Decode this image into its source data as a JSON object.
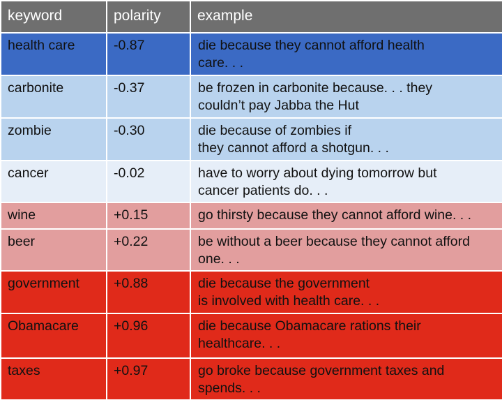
{
  "header": {
    "keyword": "keyword",
    "polarity": "polarity",
    "example": "example"
  },
  "colors": {
    "header": "#6f6f6f",
    "strong_negative": "#3b6ac4",
    "negative": "#b9d3ee",
    "neutral": "#e6eef8",
    "mild_positive": "#e29e9e",
    "strong_positive": "#e02a1a"
  },
  "rows": [
    {
      "keyword": "health care",
      "polarity": "-0.87",
      "example_line1": "die because they cannot afford health",
      "example_line2": "care. . .",
      "bg": "#3b6ac4"
    },
    {
      "keyword": "carbonite",
      "polarity": "-0.37",
      "example_line1": "be frozen in carbonite because. . . they",
      "example_line2": "couldn’t pay Jabba the Hut",
      "bg": "#b9d3ee"
    },
    {
      "keyword": "zombie",
      "polarity": "-0.30",
      "example_line1": "die because of zombies if",
      "example_line2": "they cannot afford a shotgun. . .",
      "bg": "#b9d3ee"
    },
    {
      "keyword": "cancer",
      "polarity": "-0.02",
      "example_line1": "have to worry about dying tomorrow but",
      "example_line2": "cancer patients do. . .",
      "bg": "#e6eef8"
    },
    {
      "keyword": "wine",
      "polarity": "+0.15",
      "example_line1": "go thirsty because they cannot afford wine. . .",
      "example_line2": "",
      "bg": "#e29e9e"
    },
    {
      "keyword": "beer",
      "polarity": "+0.22",
      "example_line1": "be without a beer because they cannot afford",
      "example_line2": "one. . .",
      "bg": "#e29e9e"
    },
    {
      "keyword": "government",
      "polarity": "+0.88",
      "example_line1": "die because the government",
      "example_line2": "is involved with health care. . .",
      "bg": "#e02a1a"
    },
    {
      "keyword": "Obamacare",
      "polarity": "+0.96",
      "example_line1": "die because Obamacare rations their",
      "example_line2": "healthcare. . .",
      "bg": "#e02a1a"
    },
    {
      "keyword": "taxes",
      "polarity": "+0.97",
      "example_line1": "go broke because government taxes and",
      "example_line2": "spends. . .",
      "bg": "#e02a1a"
    }
  ]
}
